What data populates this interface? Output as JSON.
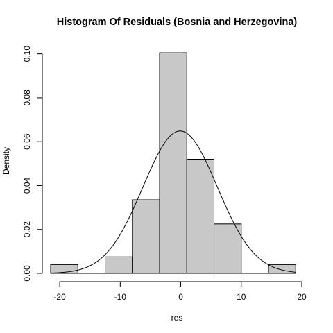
{
  "chart_data": {
    "type": "histogram",
    "title": "Histogram Of Residuals (Bosnia and Herzegovina)",
    "xlabel": "res",
    "ylabel": "Density",
    "x_ticks": [
      -20,
      -10,
      0,
      10,
      20
    ],
    "y_ticks": [
      0.0,
      0.02,
      0.04,
      0.06,
      0.08,
      0.1
    ],
    "y_tick_labels": [
      "0.00",
      "0.02",
      "0.04",
      "0.06",
      "0.08",
      "0.10"
    ],
    "xlim": [
      -21.5,
      20
    ],
    "ylim": [
      0,
      0.104
    ],
    "bins": [
      {
        "x0": -21.5,
        "x1": -17.0,
        "density": 0.004
      },
      {
        "x0": -17.0,
        "x1": -12.5,
        "density": 0.0
      },
      {
        "x0": -12.5,
        "x1": -8.0,
        "density": 0.0075
      },
      {
        "x0": -8.0,
        "x1": -3.5,
        "density": 0.0335
      },
      {
        "x0": -3.5,
        "x1": 1.0,
        "density": 0.1005
      },
      {
        "x0": 1.0,
        "x1": 5.5,
        "density": 0.052
      },
      {
        "x0": 5.5,
        "x1": 10.0,
        "density": 0.0225
      },
      {
        "x0": 10.0,
        "x1": 14.5,
        "density": 0.0
      },
      {
        "x0": 14.5,
        "x1": 19.0,
        "density": 0.004
      }
    ],
    "normal_curve": {
      "mean": -0.1,
      "sd": 6.15,
      "x_from": -21.5,
      "x_to": 19.0
    },
    "bar_fill": "#c8c8c8",
    "bar_stroke": "#000000",
    "curve_stroke": "#000000",
    "grid": false,
    "legend": "none"
  }
}
